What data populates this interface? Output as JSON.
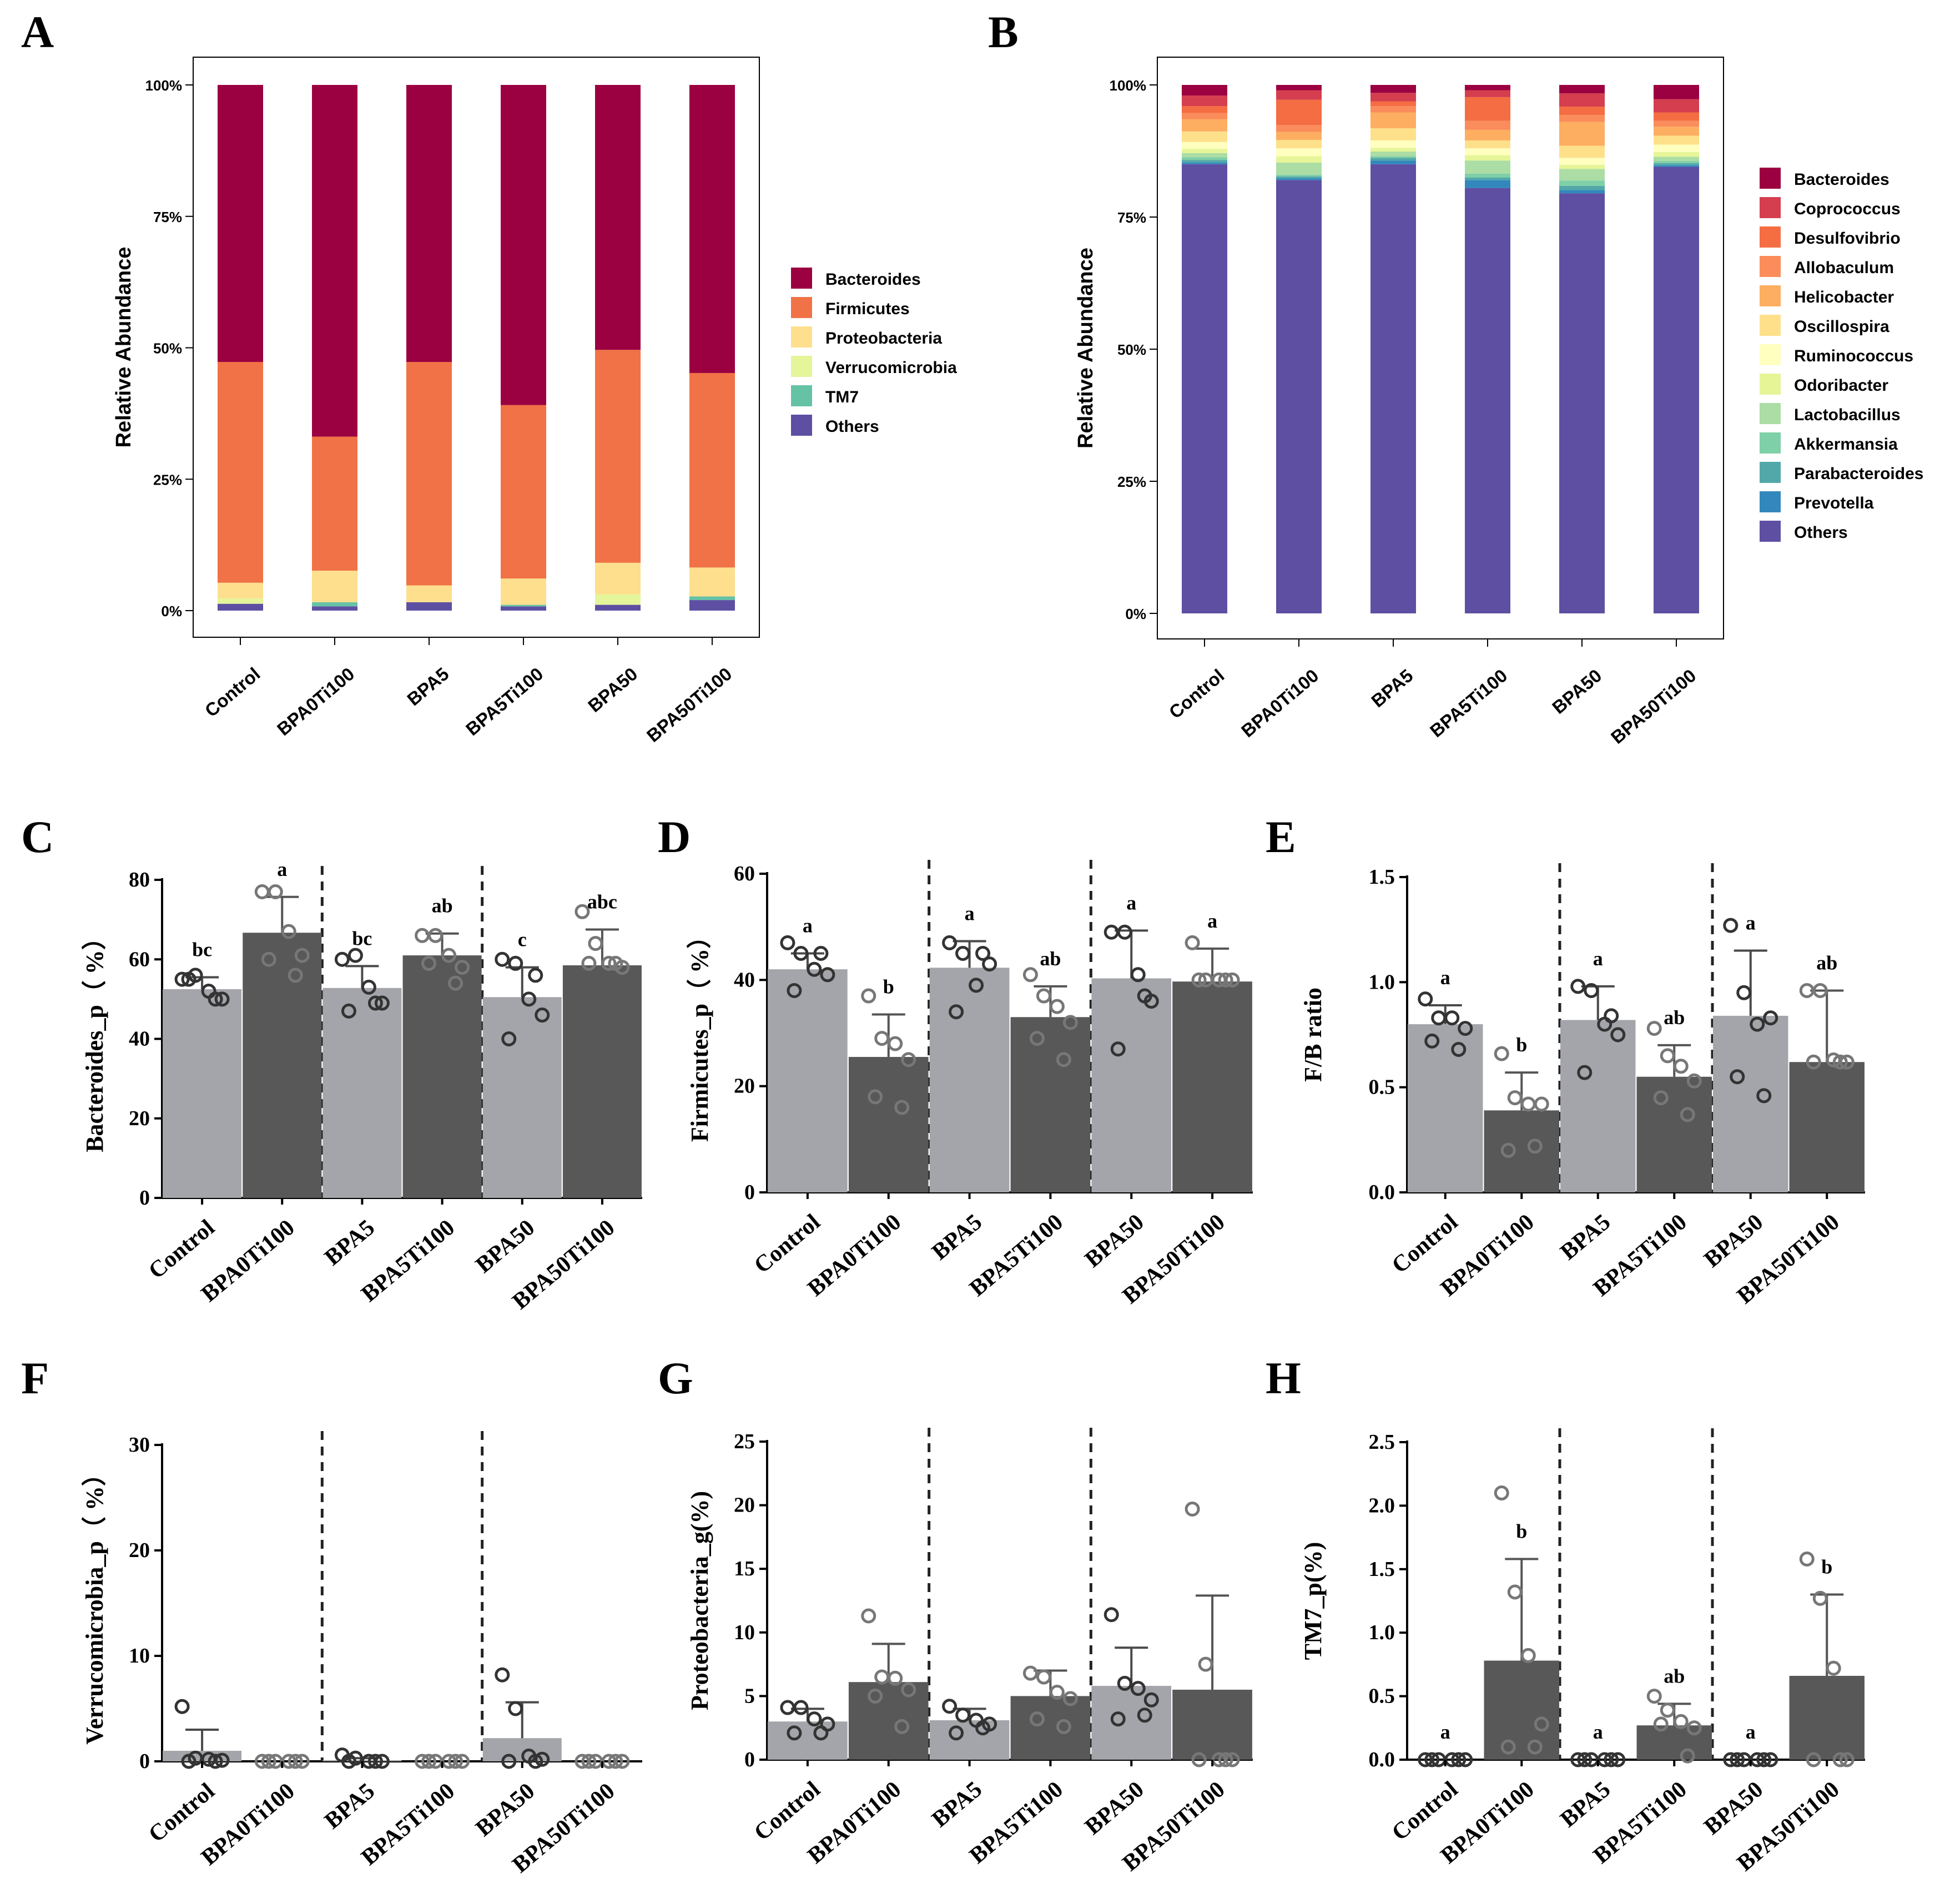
{
  "colors": {
    "phylum": [
      "#9b0040",
      "#f07246",
      "#fddf8d",
      "#e4f59a",
      "#66c2a5",
      "#5e4fa2"
    ],
    "genus": [
      "#9b0040",
      "#d53e4f",
      "#f46d43",
      "#fa8d5b",
      "#fdae61",
      "#fee08b",
      "#ffffbf",
      "#e6f598",
      "#abdda4",
      "#7fcfa8",
      "#52a8a8",
      "#3288bd",
      "#5e4fa2"
    ],
    "light_bar": "#a4a5aa",
    "dark_bar": "#585859"
  },
  "chart_data": [
    {
      "panel": "A",
      "type": "bar",
      "stacked": true,
      "categories": [
        "Control",
        "BPA0Ti100",
        "BPA5",
        "BPA5Ti100",
        "BPA50",
        "BPA50Ti100"
      ],
      "ylabel": "Relative Abundance",
      "yticks": [
        "0%",
        "25%",
        "50%",
        "75%",
        "100%"
      ],
      "ylim": [
        0,
        100
      ],
      "legend_position": "right",
      "series": [
        {
          "name": "Others",
          "values": [
            1.3,
            0.8,
            1.6,
            0.8,
            1.1,
            2.0
          ]
        },
        {
          "name": "TM7",
          "values": [
            0,
            0.8,
            0,
            0.3,
            0,
            0.7
          ]
        },
        {
          "name": "Verrucomicrobia",
          "values": [
            1.0,
            0,
            0,
            0,
            2.0,
            0
          ]
        },
        {
          "name": "Proteobacteria",
          "values": [
            3.0,
            6.0,
            3.2,
            5.0,
            6.0,
            5.5
          ]
        },
        {
          "name": "Firmicutes",
          "values": [
            42.0,
            25.5,
            42.5,
            33.0,
            40.5,
            37.0
          ]
        },
        {
          "name": "Bacteroides",
          "values": [
            52.7,
            66.9,
            52.7,
            60.9,
            50.4,
            54.8
          ]
        }
      ],
      "legend": [
        "Bacteroides",
        "Firmicutes",
        "Proteobacteria",
        "Verrucomicrobia",
        "TM7",
        "Others"
      ]
    },
    {
      "panel": "B",
      "type": "bar",
      "stacked": true,
      "categories": [
        "Control",
        "BPA0Ti100",
        "BPA5",
        "BPA5Ti100",
        "BPA50",
        "BPA50Ti100"
      ],
      "ylabel": "Relative Abundance",
      "yticks": [
        "0%",
        "25%",
        "50%",
        "75%",
        "100%"
      ],
      "ylim": [
        0,
        100
      ],
      "legend_position": "right",
      "series": [
        {
          "name": "Others",
          "values": [
            85.0,
            82.0,
            85.0,
            80.5,
            79.5,
            84.5
          ]
        },
        {
          "name": "Prevotella",
          "values": [
            0.3,
            0.3,
            0.7,
            1.5,
            0.6,
            0.3
          ]
        },
        {
          "name": "Parabacteroides",
          "values": [
            0.5,
            0.4,
            0.5,
            0.5,
            0.8,
            0.4
          ]
        },
        {
          "name": "Akkermansia",
          "values": [
            0.5,
            0.3,
            0.3,
            0.7,
            1.0,
            0.4
          ]
        },
        {
          "name": "Lactobacillus",
          "values": [
            0.8,
            2.3,
            0.9,
            2.5,
            2.2,
            0.8
          ]
        },
        {
          "name": "Odoribacter",
          "values": [
            0.8,
            1.2,
            0.7,
            1.0,
            0.8,
            0.9
          ]
        },
        {
          "name": "Ruminococcus",
          "values": [
            1.3,
            1.5,
            1.4,
            1.3,
            1.3,
            1.4
          ]
        },
        {
          "name": "Oscillospira",
          "values": [
            2.0,
            1.6,
            2.3,
            1.5,
            2.3,
            1.7
          ]
        },
        {
          "name": "Helicobacter",
          "values": [
            2.3,
            1.5,
            3.0,
            2.0,
            4.5,
            1.7
          ]
        },
        {
          "name": "Allobaculum",
          "values": [
            1.2,
            1.3,
            1.2,
            1.7,
            1.3,
            1.1
          ]
        },
        {
          "name": "Desulfovibrio",
          "values": [
            1.3,
            4.8,
            0.9,
            4.5,
            1.6,
            1.6
          ]
        },
        {
          "name": "Coprococcus",
          "values": [
            2.0,
            1.8,
            1.6,
            1.3,
            2.5,
            2.5
          ]
        },
        {
          "name": "Bacteroides",
          "values": [
            2.0,
            1.0,
            1.5,
            1.0,
            1.6,
            2.7
          ]
        }
      ],
      "legend": [
        "Bacteroides",
        "Coprococcus",
        "Desulfovibrio",
        "Allobaculum",
        "Helicobacter",
        "Oscillospira",
        "Ruminococcus",
        "Odoribacter",
        "Lactobacillus",
        "Akkermansia",
        "Parabacteroides",
        "Prevotella",
        "Others"
      ]
    },
    {
      "panel": "C",
      "type": "bar",
      "ylabel": "Bacteroides_p（ %）",
      "ylim": [
        0,
        80
      ],
      "yticks": [
        "0",
        "20",
        "40",
        "60",
        "80"
      ],
      "categories": [
        "Control",
        "BPA0Ti100",
        "BPA5",
        "BPA5Ti100",
        "BPA50",
        "BPA50Ti100"
      ],
      "values": [
        52.5,
        66.7,
        52.8,
        61.0,
        50.5,
        58.5
      ],
      "errors": [
        3.0,
        9.0,
        5.5,
        5.5,
        7.5,
        9.0
      ],
      "letters": [
        "bc",
        "a",
        "bc",
        "ab",
        "c",
        "abc"
      ],
      "points": [
        [
          55,
          56,
          52,
          50,
          55,
          50
        ],
        [
          77,
          77,
          67,
          61,
          60,
          56
        ],
        [
          60,
          61,
          53,
          49,
          47,
          49
        ],
        [
          66,
          66,
          61,
          58,
          59,
          54
        ],
        [
          60,
          59,
          50,
          46,
          40,
          56
        ],
        [
          72,
          64,
          59,
          58,
          59,
          59
        ]
      ]
    },
    {
      "panel": "D",
      "type": "bar",
      "ylabel": "Firmicutes_p（ %）",
      "ylim": [
        0,
        60
      ],
      "yticks": [
        "0",
        "20",
        "40",
        "60"
      ],
      "categories": [
        "Control",
        "BPA0Ti100",
        "BPA5",
        "BPA5Ti100",
        "BPA50",
        "BPA50Ti100"
      ],
      "values": [
        42.0,
        25.5,
        42.3,
        33.0,
        40.3,
        39.7
      ],
      "errors": [
        3.0,
        8.0,
        5.0,
        5.8,
        9.0,
        6.2
      ],
      "letters": [
        "a",
        "b",
        "a",
        "ab",
        "a",
        "a"
      ],
      "points": [
        [
          47,
          45,
          42,
          41,
          38,
          45
        ],
        [
          37,
          29,
          28,
          25,
          18,
          16
        ],
        [
          47,
          45,
          39,
          43,
          34,
          45
        ],
        [
          41,
          37,
          35,
          32,
          29,
          25
        ],
        [
          49,
          49,
          41,
          36,
          27,
          37
        ],
        [
          47,
          40,
          40,
          40,
          40,
          40
        ]
      ]
    },
    {
      "panel": "E",
      "type": "bar",
      "ylabel": "F/B ratio",
      "ylim": [
        0,
        1.5
      ],
      "yticks": [
        "0.0",
        "0.5",
        "1.0",
        "1.5"
      ],
      "categories": [
        "Control",
        "BPA0Ti100",
        "BPA5",
        "BPA5Ti100",
        "BPA50",
        "BPA50Ti100"
      ],
      "values": [
        0.8,
        0.39,
        0.82,
        0.55,
        0.84,
        0.62
      ],
      "errors": [
        0.09,
        0.18,
        0.16,
        0.15,
        0.31,
        0.34
      ],
      "letters": [
        "a",
        "b",
        "a",
        "ab",
        "a",
        "ab"
      ],
      "points": [
        [
          0.92,
          0.83,
          0.83,
          0.78,
          0.72,
          0.68
        ],
        [
          0.66,
          0.45,
          0.42,
          0.42,
          0.2,
          0.22
        ],
        [
          0.98,
          0.96,
          0.8,
          0.75,
          0.57,
          0.84
        ],
        [
          0.78,
          0.65,
          0.6,
          0.53,
          0.45,
          0.37
        ],
        [
          1.27,
          0.95,
          0.8,
          0.83,
          0.55,
          0.46
        ],
        [
          0.96,
          0.96,
          0.63,
          0.62,
          0.62,
          0.62
        ]
      ]
    },
    {
      "panel": "F",
      "type": "bar",
      "ylabel": "Verrucomicrobia_p（ %）",
      "ylim": [
        0,
        30
      ],
      "yticks": [
        "0",
        "10",
        "20",
        "30"
      ],
      "categories": [
        "Control",
        "BPA0Ti100",
        "BPA5",
        "BPA5Ti100",
        "BPA50",
        "BPA50Ti100"
      ],
      "values": [
        1.0,
        0,
        0.1,
        0,
        2.2,
        0
      ],
      "errors": [
        2.0,
        0,
        0.2,
        0,
        3.4,
        0
      ],
      "letters": [],
      "points": [
        [
          5.2,
          0.3,
          0.2,
          0.1,
          0,
          0
        ],
        [
          0,
          0,
          0,
          0,
          0,
          0
        ],
        [
          0.6,
          0.3,
          0,
          0,
          0,
          0
        ],
        [
          0,
          0,
          0,
          0,
          0,
          0
        ],
        [
          8.2,
          5.0,
          0.5,
          0.2,
          0,
          0
        ],
        [
          0,
          0,
          0,
          0,
          0,
          0
        ]
      ]
    },
    {
      "panel": "G",
      "type": "bar",
      "ylabel": "Proteobacteria_g(%)",
      "ylim": [
        0,
        25
      ],
      "yticks": [
        "0",
        "5",
        "10",
        "15",
        "20",
        "25"
      ],
      "categories": [
        "Control",
        "BPA0Ti100",
        "BPA5",
        "BPA5Ti100",
        "BPA50",
        "BPA50Ti100"
      ],
      "values": [
        3.0,
        6.1,
        3.1,
        5.0,
        5.8,
        5.5
      ],
      "errors": [
        1.0,
        3.0,
        0.9,
        2.0,
        3.0,
        7.4
      ],
      "letters": [],
      "points": [
        [
          4.1,
          4.1,
          3.2,
          2.8,
          2.1,
          2.1
        ],
        [
          11.3,
          6.5,
          6.4,
          5.5,
          5.0,
          2.6
        ],
        [
          4.2,
          3.5,
          3.1,
          2.8,
          2.1,
          2.5
        ],
        [
          6.8,
          6.5,
          5.3,
          4.8,
          3.2,
          2.6
        ],
        [
          11.4,
          6.0,
          5.6,
          4.7,
          3.2,
          3.5
        ],
        [
          19.7,
          7.5,
          0,
          0,
          0,
          0
        ]
      ]
    },
    {
      "panel": "H",
      "type": "bar",
      "ylabel": "TM7_p(%)",
      "ylim": [
        0,
        2.5
      ],
      "yticks": [
        "0.0",
        "0.5",
        "1.0",
        "1.5",
        "2.0",
        "2.5"
      ],
      "categories": [
        "Control",
        "BPA0Ti100",
        "BPA5",
        "BPA5Ti100",
        "BPA50",
        "BPA50Ti100"
      ],
      "values": [
        0,
        0.78,
        0,
        0.27,
        0,
        0.66
      ],
      "errors": [
        0,
        0.8,
        0,
        0.17,
        0,
        0.64
      ],
      "letters": [
        "a",
        "b",
        "a",
        "ab",
        "a",
        "b"
      ],
      "points": [
        [
          0,
          0,
          0,
          0,
          0,
          0
        ],
        [
          2.1,
          1.32,
          0.82,
          0.28,
          0.1,
          0.1
        ],
        [
          0,
          0,
          0,
          0,
          0,
          0
        ],
        [
          0.5,
          0.39,
          0.3,
          0.25,
          0.28,
          0.03
        ],
        [
          0,
          0,
          0,
          0,
          0,
          0
        ],
        [
          1.58,
          1.27,
          0.72,
          0,
          0,
          0
        ]
      ]
    }
  ]
}
